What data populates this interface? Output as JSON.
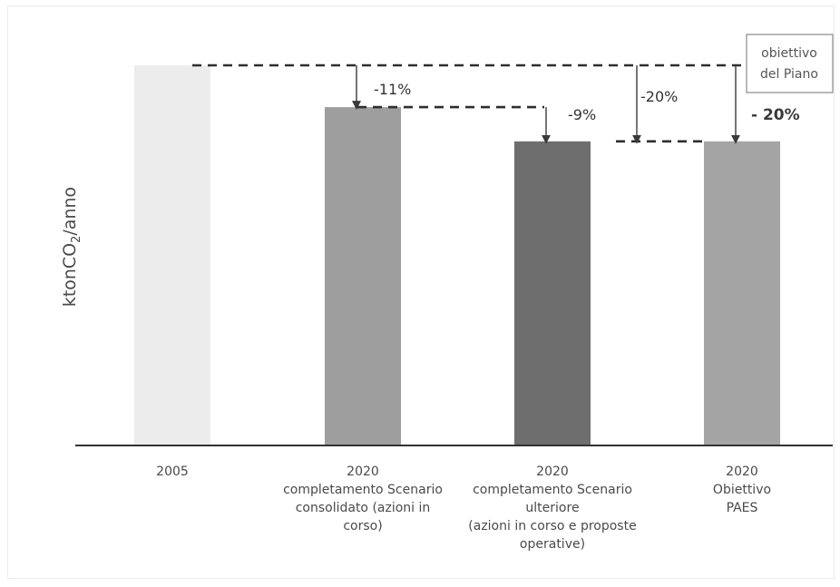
{
  "chart_data": {
    "type": "bar",
    "ylabel": "ktonCO₂/anno",
    "categories": [
      [
        "2005"
      ],
      [
        "2020",
        "completamento Scenario",
        "consolidato (azioni in",
        "corso)"
      ],
      [
        "2020",
        "completamento Scenario",
        "ulteriore",
        "(azioni in corso e proposte",
        "operative)"
      ],
      [
        "2020",
        "Obiettivo",
        "PAES"
      ]
    ],
    "values": [
      100,
      89,
      80,
      80
    ],
    "colors": [
      "#ececec",
      "#9e9e9e",
      "#6e6e6e",
      "#a4a4a4"
    ],
    "ylim": [
      0,
      100
    ],
    "annotations": [
      {
        "text": "-11%",
        "from": 0,
        "to": 1
      },
      {
        "text": "-9%",
        "from": 1,
        "to": 2
      },
      {
        "text": "-20%",
        "from": 0,
        "to": 2
      },
      {
        "text": "- 20%",
        "from": 0,
        "to": 3,
        "bold": true
      }
    ],
    "target_box": [
      "obiettivo",
      "del Piano"
    ]
  }
}
